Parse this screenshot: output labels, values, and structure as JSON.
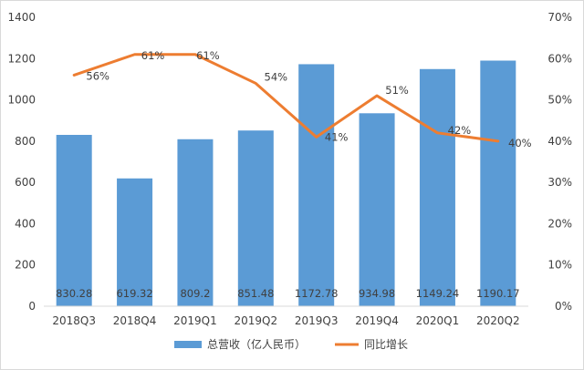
{
  "chart_data": {
    "type": "bar",
    "title": "",
    "categories": [
      "2018Q3",
      "2018Q4",
      "2019Q1",
      "2019Q2",
      "2019Q3",
      "2019Q4",
      "2020Q1",
      "2020Q2"
    ],
    "series": [
      {
        "name": "总营收（亿人民币）",
        "type": "bar",
        "axis": "left",
        "color": "#5b9bd5",
        "values": [
          830.28,
          619.32,
          809.2,
          851.48,
          1172.78,
          934.98,
          1149.24,
          1190.17
        ],
        "labels": [
          "830.28",
          "619.32",
          "809.2",
          "851.48",
          "1172.78",
          "934.98",
          "1149.24",
          "1190.17"
        ]
      },
      {
        "name": "同比增长",
        "type": "line",
        "axis": "right",
        "color": "#ed7d31",
        "values": [
          56,
          61,
          61,
          54,
          41,
          51,
          42,
          40
        ],
        "labels": [
          "56%",
          "61%",
          "61%",
          "54%",
          "41%",
          "51%",
          "42%",
          "40%"
        ]
      }
    ],
    "y_left": {
      "min": 0,
      "max": 1400,
      "step": 200,
      "ticks": [
        "0",
        "200",
        "400",
        "600",
        "800",
        "1000",
        "1200",
        "1400"
      ]
    },
    "y_right": {
      "min": 0,
      "max": 70,
      "step": 10,
      "ticks": [
        "0%",
        "10%",
        "20%",
        "30%",
        "40%",
        "50%",
        "60%",
        "70%"
      ]
    },
    "grid": false,
    "legend": "bottom"
  }
}
